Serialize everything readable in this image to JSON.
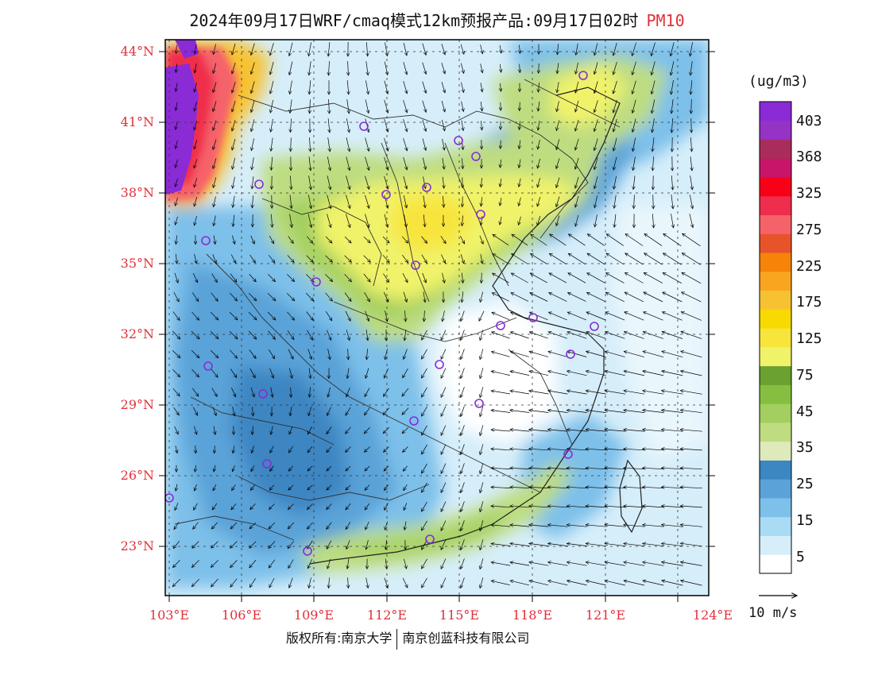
{
  "title": {
    "main": "2024年09月17日WRF/cmaq模式12km预报产品:09月17日02时",
    "pollutant": "PM10"
  },
  "map": {
    "lat_labels": [
      "44°N",
      "41°N",
      "38°N",
      "35°N",
      "32°N",
      "29°N",
      "26°N",
      "23°N"
    ],
    "lon_labels": [
      "103°E",
      "106°E",
      "109°E",
      "112°E",
      "115°E",
      "118°E",
      "121°E",
      "124°E"
    ]
  },
  "colorbar": {
    "unit": "(ug/m3)",
    "labels": [
      "403",
      "368",
      "325",
      "275",
      "225",
      "175",
      "125",
      "75",
      "45",
      "35",
      "25",
      "15",
      "5"
    ],
    "colors": [
      "#ffffff",
      "#d6eefa",
      "#a9dcf4",
      "#7dc0ea",
      "#5aa3d8",
      "#3c86c2",
      "#dfeabb",
      "#bedd80",
      "#a2cf5f",
      "#86bf40",
      "#6aa130",
      "#f0f36a",
      "#f7e53c",
      "#f9da00",
      "#f7c232",
      "#f9a520",
      "#f58409",
      "#e8542a",
      "#f5626a",
      "#ef2d4c",
      "#f80018",
      "#c8156a",
      "#a82c5c",
      "#9533c6",
      "#8a2bd6"
    ]
  },
  "vector_scale": {
    "label": "10  m/s"
  },
  "footer": {
    "left": "版权所有:南京大学",
    "right": "南京创蓝科技有限公司"
  },
  "legend_colors": {
    "city_marker": "#8a2bd6",
    "label_red": "#e0303a"
  }
}
